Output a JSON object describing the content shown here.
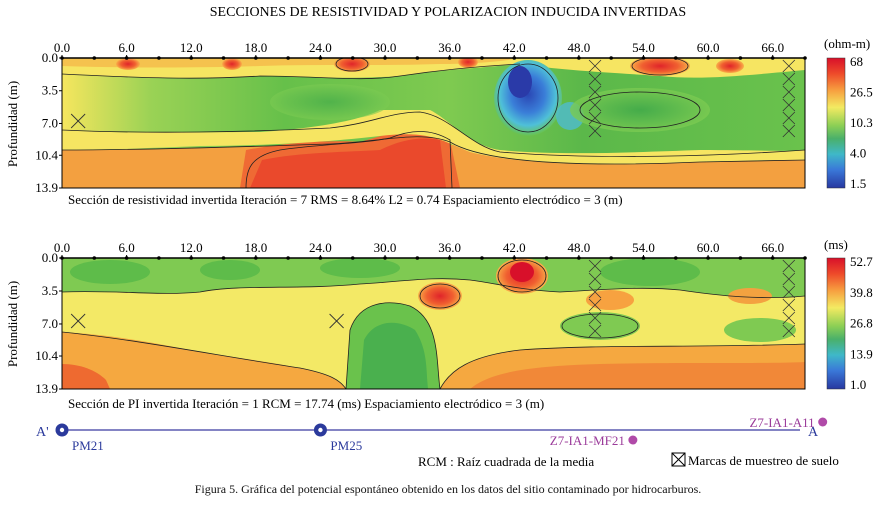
{
  "title": "SECCIONES DE RESISTIVIDAD Y POLARIZACION INDUCIDA INVERTIDAS",
  "chart_data": [
    {
      "type": "heatmap",
      "ylabel": "Profundidad (m)",
      "x_ticks": [
        "0.0",
        "6.0",
        "12.0",
        "18.0",
        "24.0",
        "30.0",
        "36.0",
        "42.0",
        "48.0",
        "54.0",
        "60.0",
        "66.0"
      ],
      "y_ticks": [
        "0.0",
        "3.5",
        "7.0",
        "10.4",
        "13.9"
      ],
      "xlim": [
        0,
        69
      ],
      "ylim": [
        0,
        13.9
      ],
      "colorbar_unit": "(ohm-m)",
      "colorbar_labels": [
        "68",
        "26.5",
        "10.3",
        "4.0",
        "1.5"
      ],
      "colorbar_colors": [
        "#d8102a",
        "#ee4a2a",
        "#f58a3a",
        "#f9c04a",
        "#f3ea62",
        "#b6dc62",
        "#6ac24c",
        "#4ab06a",
        "#3fb8c8",
        "#3a8ee0",
        "#3658c4",
        "#2838a0"
      ],
      "scale": "log",
      "footer_parts": [
        "Sección de resistividad invertida",
        "Iteración = 7",
        "RMS = 8.64%",
        "L2 = 0.74",
        "Espaciamiento electródico = 3 (m)"
      ],
      "sampling_marks_x": [
        1.5,
        49.5,
        67.5
      ]
    },
    {
      "type": "heatmap",
      "ylabel": "Profundidad (m)",
      "x_ticks": [
        "0.0",
        "6.0",
        "12.0",
        "18.0",
        "24.0",
        "30.0",
        "36.0",
        "42.0",
        "48.0",
        "54.0",
        "60.0",
        "66.0"
      ],
      "y_ticks": [
        "0.0",
        "3.5",
        "7.0",
        "10.4",
        "13.9"
      ],
      "xlim": [
        0,
        69
      ],
      "ylim": [
        0,
        13.9
      ],
      "colorbar_unit": "(ms)",
      "colorbar_labels": [
        "52.7",
        "39.8",
        "26.8",
        "13.9",
        "1.0"
      ],
      "colorbar_colors": [
        "#d8102a",
        "#ee4a2a",
        "#f58a3a",
        "#f9c04a",
        "#f3ea62",
        "#b6dc62",
        "#6ac24c",
        "#4ab06a",
        "#3fb8c8",
        "#3a8ee0",
        "#3658c4",
        "#2838a0"
      ],
      "scale": "linear",
      "footer_parts": [
        "Sección de PI invertida",
        "Iteración = 1",
        "RCM = 17.74 (ms)",
        "Espaciamiento electródico = 3 (m)"
      ],
      "sampling_marks_x": [
        1.5,
        25.5,
        49.5,
        67.5
      ]
    }
  ],
  "profile": {
    "start_label": "A'",
    "end_label": "A",
    "points": [
      {
        "label": "PM21",
        "x": 0
      },
      {
        "label": "PM25",
        "x": 24
      }
    ],
    "samples": [
      {
        "label": "Z7-IA1-MF21",
        "x": 48
      },
      {
        "label": "Z7-IA1-A11",
        "x": 66
      }
    ],
    "legend_rcm": "RCM : Raíz cuadrada de la media",
    "legend_marks": "Marcas de muestreo de suelo"
  },
  "caption": "Figura 5.  Gráfica del potencial espontáneo obtenido en los datos del sitio contaminado por hidrocarburos.",
  "colors": {
    "profile_line": "#3a3aa0",
    "pm_marker": "#2b3a9c",
    "sample_marker": "#b04aa8",
    "sample_text": "#9b3b9a"
  }
}
